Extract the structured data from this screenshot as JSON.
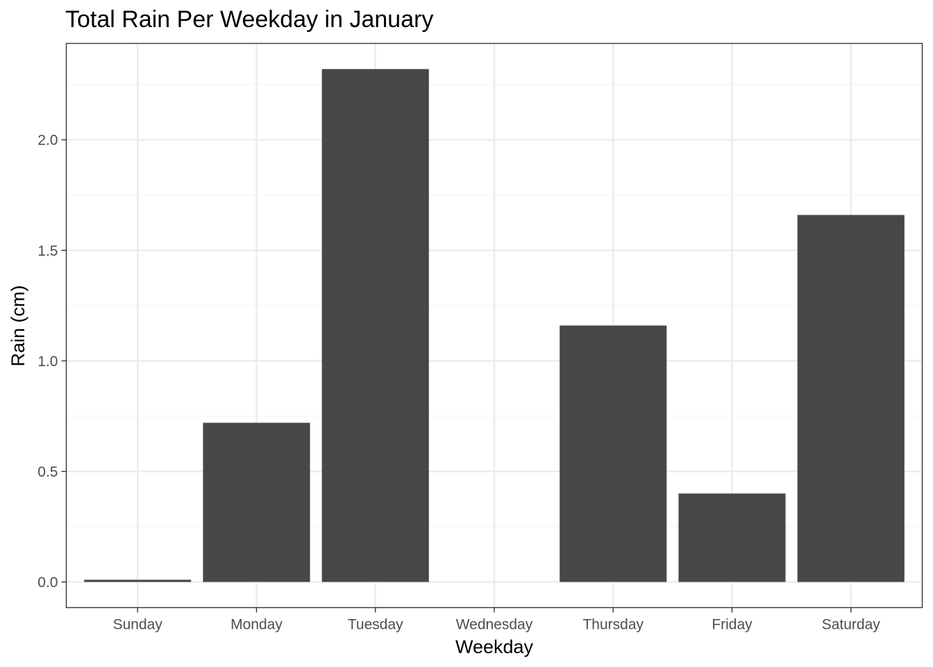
{
  "chart_data": {
    "type": "bar",
    "title": "Total Rain Per Weekday in January",
    "xlabel": "Weekday",
    "ylabel": "Rain (cm)",
    "categories": [
      "Sunday",
      "Monday",
      "Tuesday",
      "Wednesday",
      "Thursday",
      "Friday",
      "Saturday"
    ],
    "values": [
      0.01,
      0.72,
      2.32,
      0.0,
      1.16,
      0.4,
      1.66
    ],
    "ylim": [
      -0.116,
      2.436
    ],
    "yticks": [
      0.0,
      0.5,
      1.0,
      1.5,
      2.0
    ],
    "ytick_labels": [
      "0.0",
      "0.5",
      "1.0",
      "1.5",
      "2.0"
    ],
    "grid": true,
    "legend": "none",
    "colors": {
      "bar": "#474747",
      "panel_border": "#333333",
      "grid_major": "#ebebeb",
      "grid_minor": "#f5f5f5",
      "tick_text": "#4d4d4d",
      "background": "#ffffff"
    }
  }
}
